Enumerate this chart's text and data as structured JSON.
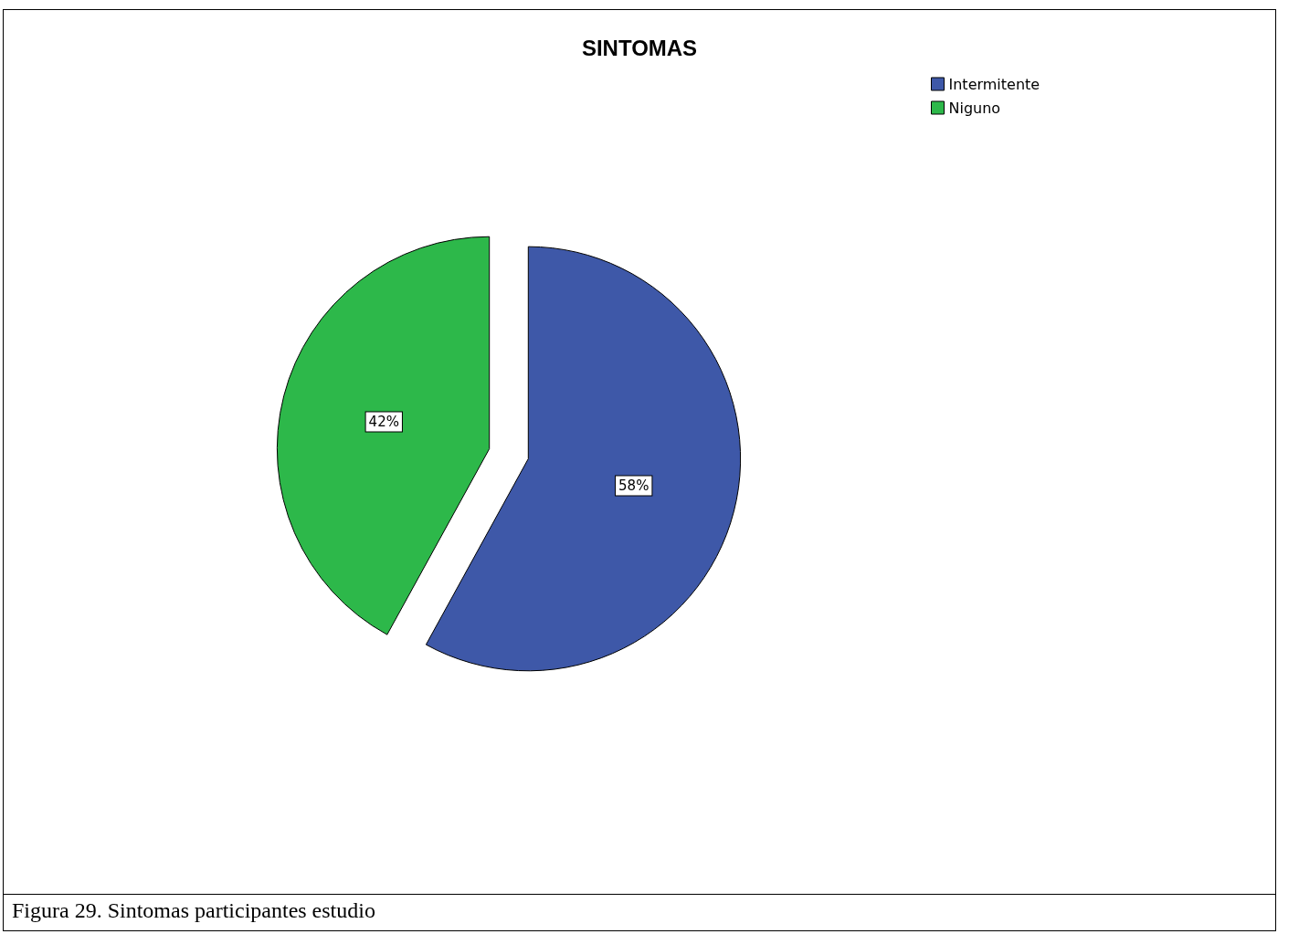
{
  "chart_data": {
    "type": "pie",
    "title": "SINTOMAS",
    "categories": [
      "Intermitente",
      "Niguno"
    ],
    "values": [
      58,
      42
    ],
    "colors": [
      "#3e58a8",
      "#2db84a"
    ],
    "value_labels": [
      "58%",
      "42%"
    ],
    "legend": "top right",
    "annotations": [
      "Figura 29. Sintomas participantes estudio"
    ]
  }
}
